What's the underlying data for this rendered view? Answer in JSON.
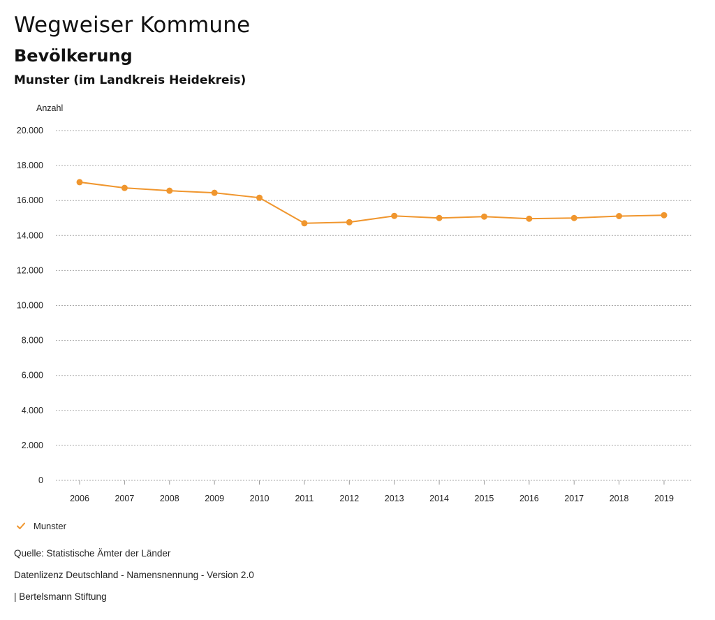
{
  "header": {
    "title": "Wegweiser Kommune",
    "subtitle": "Bevölkerung",
    "region": "Munster (im Landkreis Heidekreis)"
  },
  "colors": {
    "series": "#f0962e",
    "grid": "#aaaaaa"
  },
  "chart_data": {
    "type": "line",
    "title": "Bevölkerung",
    "ylabel": "Anzahl",
    "xlabel": "",
    "ylim": [
      0,
      20000
    ],
    "ytick_values": [
      0,
      2000,
      4000,
      6000,
      8000,
      10000,
      12000,
      14000,
      16000,
      18000,
      20000
    ],
    "ytick_labels": [
      "0",
      "2.000",
      "4.000",
      "6.000",
      "8.000",
      "10.000",
      "12.000",
      "14.000",
      "16.000",
      "18.000",
      "20.000"
    ],
    "categories": [
      "2006",
      "2007",
      "2008",
      "2009",
      "2010",
      "2011",
      "2012",
      "2013",
      "2014",
      "2015",
      "2016",
      "2017",
      "2018",
      "2019"
    ],
    "series": [
      {
        "name": "Munster",
        "values": [
          17050,
          16720,
          16560,
          16440,
          16160,
          14700,
          14760,
          15120,
          15000,
          15080,
          14960,
          15000,
          15110,
          15160
        ]
      }
    ],
    "legend_position": "bottom-left",
    "grid": true
  },
  "legend": {
    "items": [
      {
        "label": "Munster",
        "icon": "check-icon"
      }
    ]
  },
  "footer": {
    "source": "Quelle: Statistische Ämter der Länder",
    "license": "Datenlizenz Deutschland - Namensnennung - Version 2.0",
    "publisher": "| Bertelsmann Stiftung"
  }
}
